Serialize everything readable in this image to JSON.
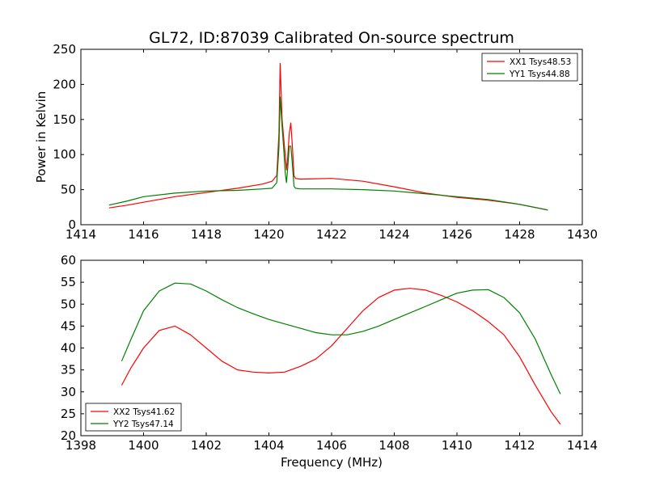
{
  "figure": {
    "title": "GL72, ID:87039 Calibrated On-source spectrum",
    "xlabel": "Frequency (MHz)"
  },
  "chart_data": [
    {
      "type": "line",
      "ylabel": "Power in Kelvin",
      "xlim": [
        1414,
        1430
      ],
      "ylim": [
        0,
        250
      ],
      "xticks": [
        1414,
        1416,
        1418,
        1420,
        1422,
        1424,
        1426,
        1428,
        1430
      ],
      "yticks": [
        0,
        50,
        100,
        150,
        200,
        250
      ],
      "legend_position": "top-right",
      "series": [
        {
          "name": "XX1 Tsys48.53",
          "color": "#ff0000",
          "x": [
            1414.9,
            1415.5,
            1416,
            1417,
            1418,
            1419,
            1419.8,
            1420.1,
            1420.25,
            1420.32,
            1420.36,
            1420.42,
            1420.47,
            1420.52,
            1420.56,
            1420.6,
            1420.65,
            1420.7,
            1420.75,
            1420.8,
            1420.85,
            1421,
            1422,
            1423,
            1424,
            1425,
            1426,
            1427,
            1428,
            1428.9
          ],
          "y": [
            24,
            28,
            32,
            40,
            46,
            52,
            58,
            62,
            70,
            130,
            230,
            150,
            125,
            100,
            78,
            95,
            130,
            145,
            110,
            70,
            66,
            65,
            66,
            62,
            54,
            45,
            39,
            35,
            29,
            21
          ]
        },
        {
          "name": "YY1 Tsys44.88",
          "color": "#008000",
          "x": [
            1414.9,
            1415.5,
            1416,
            1417,
            1418,
            1419,
            1419.8,
            1420.1,
            1420.25,
            1420.32,
            1420.36,
            1420.42,
            1420.47,
            1420.52,
            1420.56,
            1420.6,
            1420.65,
            1420.7,
            1420.75,
            1420.8,
            1420.85,
            1421,
            1422,
            1423,
            1424,
            1425,
            1426,
            1427,
            1428,
            1428.9
          ],
          "y": [
            28,
            34,
            40,
            45,
            48,
            49,
            51,
            52,
            60,
            110,
            182,
            140,
            110,
            75,
            60,
            80,
            112,
            112,
            85,
            55,
            52,
            51,
            51,
            50,
            48,
            44,
            40,
            36,
            29,
            21
          ]
        }
      ]
    },
    {
      "type": "line",
      "ylabel": "",
      "xlim": [
        1398,
        1414
      ],
      "ylim": [
        20,
        60
      ],
      "xticks": [
        1398,
        1400,
        1402,
        1404,
        1406,
        1408,
        1410,
        1412,
        1414
      ],
      "yticks": [
        20,
        25,
        30,
        35,
        40,
        45,
        50,
        55,
        60
      ],
      "legend_position": "bottom-left",
      "series": [
        {
          "name": "XX2 Tsys41.62",
          "color": "#ff0000",
          "x": [
            1399.3,
            1399.6,
            1400,
            1400.5,
            1401,
            1401.5,
            1402,
            1402.5,
            1403,
            1403.5,
            1404,
            1404.5,
            1405,
            1405.5,
            1406,
            1406.5,
            1407,
            1407.5,
            1408,
            1408.5,
            1409,
            1409.5,
            1410,
            1410.5,
            1411,
            1411.5,
            1412,
            1412.5,
            1413,
            1413.3
          ],
          "y": [
            31.5,
            35.5,
            40,
            44,
            45,
            43,
            40,
            37,
            35,
            34.5,
            34.3,
            34.5,
            35.8,
            37.5,
            40.5,
            44.5,
            48.5,
            51.5,
            53.2,
            53.6,
            53.2,
            52,
            50.5,
            48.5,
            46,
            43,
            38,
            31.5,
            25.5,
            22.6
          ]
        },
        {
          "name": "YY2 Tsys47.14",
          "color": "#008000",
          "x": [
            1399.3,
            1399.6,
            1400,
            1400.5,
            1401,
            1401.5,
            1402,
            1402.5,
            1403,
            1403.5,
            1404,
            1404.5,
            1405,
            1405.5,
            1406,
            1406.5,
            1407,
            1407.5,
            1408,
            1408.5,
            1409,
            1409.5,
            1410,
            1410.5,
            1411,
            1411.5,
            1412,
            1412.5,
            1413,
            1413.3
          ],
          "y": [
            37,
            42,
            48.5,
            53,
            54.8,
            54.6,
            53,
            51,
            49.2,
            47.8,
            46.5,
            45.5,
            44.5,
            43.5,
            43.0,
            43,
            43.8,
            45,
            46.5,
            48,
            49.5,
            51,
            52.5,
            53.2,
            53.3,
            51.5,
            48,
            42,
            34,
            29.5
          ]
        }
      ]
    }
  ]
}
